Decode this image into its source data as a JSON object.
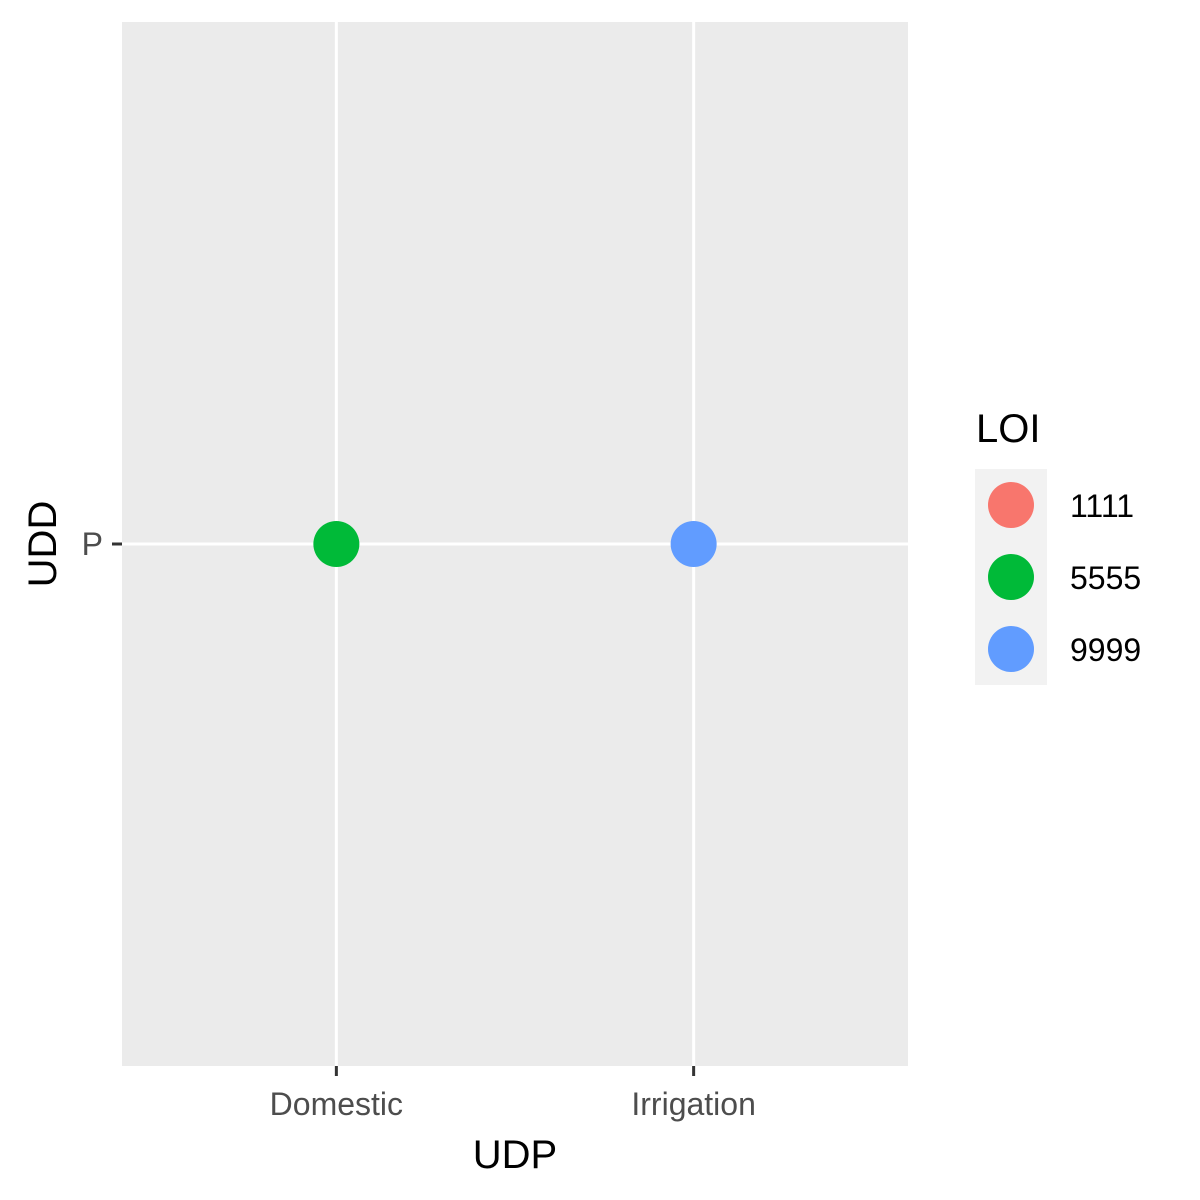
{
  "chart_data": {
    "type": "scatter",
    "title": "",
    "xlabel": "UDP",
    "ylabel": "UDD",
    "x_categories": [
      "Domestic",
      "Irrigation"
    ],
    "y_categories": [
      "P"
    ],
    "grid": true,
    "legend": {
      "title": "LOI",
      "placement": "right",
      "entries": [
        {
          "label": "1111",
          "color": "#F8766D"
        },
        {
          "label": "5555",
          "color": "#00BA38"
        },
        {
          "label": "9999",
          "color": "#619CFF"
        }
      ]
    },
    "points": [
      {
        "x": "Domestic",
        "y": "P",
        "group": "5555"
      },
      {
        "x": "Irrigation",
        "y": "P",
        "group": "9999"
      }
    ],
    "colors": {
      "panel_background": "#EBEBEB",
      "grid_line": "#FFFFFF",
      "legend_key_background": "#F2F2F2"
    }
  }
}
